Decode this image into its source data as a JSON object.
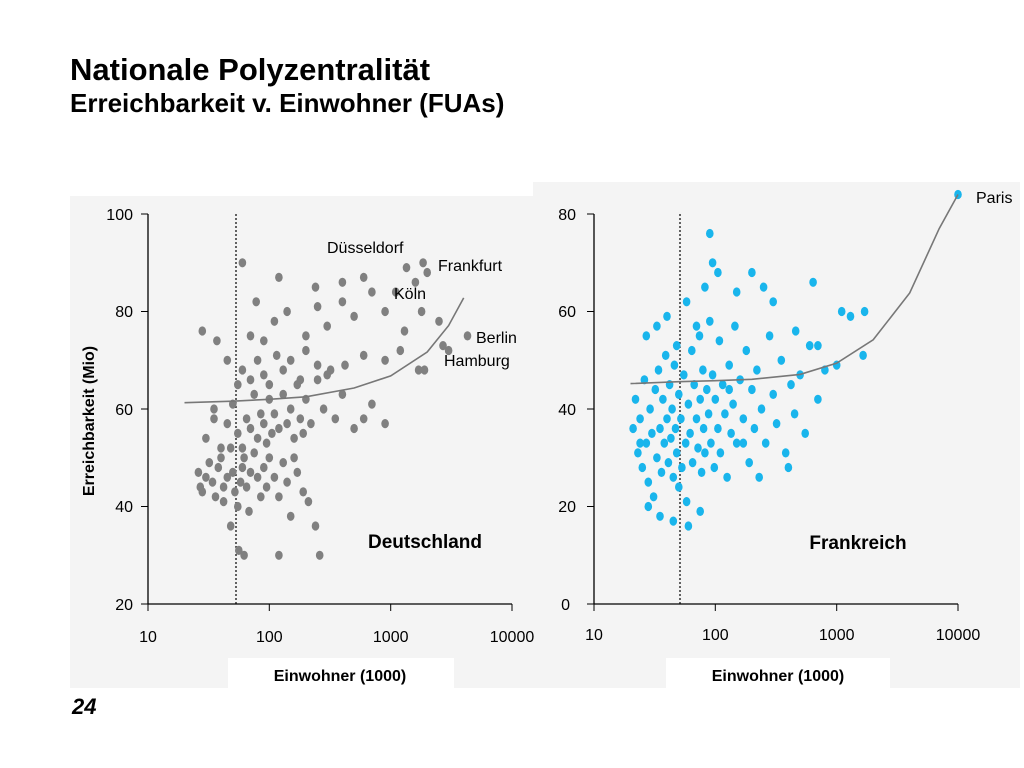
{
  "slide": {
    "title": "Nationale Polyzentralität",
    "subtitle": "Erreichbarkeit v. Einwohner (FUAs)",
    "page_number": "24"
  },
  "chart_data": [
    {
      "type": "scatter",
      "panel_label": "Deutschland",
      "xlabel": "Einwohner (1000)",
      "ylabel": "Erreichbarkeit (Mio)",
      "x_scale": "log",
      "xlim": [
        10,
        10000
      ],
      "ylim": [
        20,
        100
      ],
      "x_ticks": [
        "10",
        "100",
        "1000",
        "10000"
      ],
      "y_ticks": [
        "20",
        "40",
        "60",
        "80",
        "100"
      ],
      "reference_line_x": 50,
      "color": "#808080",
      "points": [
        [
          26,
          47
        ],
        [
          27,
          44
        ],
        [
          28,
          43
        ],
        [
          30,
          46
        ],
        [
          32,
          49
        ],
        [
          34,
          45
        ],
        [
          36,
          42
        ],
        [
          38,
          48
        ],
        [
          40,
          50
        ],
        [
          42,
          44
        ],
        [
          45,
          46
        ],
        [
          48,
          52
        ],
        [
          50,
          47
        ],
        [
          52,
          43
        ],
        [
          55,
          40
        ],
        [
          58,
          45
        ],
        [
          60,
          48
        ],
        [
          62,
          50
        ],
        [
          65,
          44
        ],
        [
          68,
          39
        ],
        [
          70,
          47
        ],
        [
          75,
          51
        ],
        [
          80,
          46
        ],
        [
          85,
          42
        ],
        [
          90,
          48
        ],
        [
          95,
          44
        ],
        [
          100,
          50
        ],
        [
          110,
          46
        ],
        [
          120,
          42
        ],
        [
          130,
          49
        ],
        [
          140,
          45
        ],
        [
          150,
          38
        ],
        [
          170,
          47
        ],
        [
          190,
          43
        ],
        [
          210,
          41
        ],
        [
          240,
          36
        ],
        [
          30,
          54
        ],
        [
          35,
          58
        ],
        [
          40,
          52
        ],
        [
          45,
          57
        ],
        [
          50,
          61
        ],
        [
          55,
          55
        ],
        [
          60,
          52
        ],
        [
          65,
          58
        ],
        [
          70,
          56
        ],
        [
          75,
          63
        ],
        [
          80,
          54
        ],
        [
          85,
          59
        ],
        [
          90,
          57
        ],
        [
          95,
          53
        ],
        [
          100,
          62
        ],
        [
          105,
          55
        ],
        [
          110,
          59
        ],
        [
          120,
          56
        ],
        [
          130,
          63
        ],
        [
          140,
          57
        ],
        [
          150,
          60
        ],
        [
          160,
          54
        ],
        [
          170,
          65
        ],
        [
          180,
          58
        ],
        [
          190,
          55
        ],
        [
          200,
          62
        ],
        [
          220,
          57
        ],
        [
          250,
          66
        ],
        [
          280,
          60
        ],
        [
          300,
          67
        ],
        [
          350,
          58
        ],
        [
          400,
          63
        ],
        [
          500,
          56
        ],
        [
          600,
          58
        ],
        [
          700,
          61
        ],
        [
          900,
          57
        ],
        [
          55,
          65
        ],
        [
          60,
          68
        ],
        [
          70,
          66
        ],
        [
          80,
          70
        ],
        [
          90,
          67
        ],
        [
          100,
          65
        ],
        [
          115,
          71
        ],
        [
          130,
          68
        ],
        [
          150,
          70
        ],
        [
          180,
          66
        ],
        [
          200,
          72
        ],
        [
          250,
          69
        ],
        [
          320,
          68
        ],
        [
          420,
          69
        ],
        [
          600,
          71
        ],
        [
          900,
          70
        ],
        [
          1200,
          72
        ],
        [
          1700,
          68
        ],
        [
          28,
          76
        ],
        [
          37,
          74
        ],
        [
          45,
          70
        ],
        [
          70,
          75
        ],
        [
          78,
          82
        ],
        [
          90,
          74
        ],
        [
          110,
          78
        ],
        [
          140,
          80
        ],
        [
          200,
          75
        ],
        [
          250,
          81
        ],
        [
          300,
          77
        ],
        [
          400,
          82
        ],
        [
          500,
          79
        ],
        [
          700,
          84
        ],
        [
          900,
          80
        ],
        [
          1300,
          76
        ],
        [
          1600,
          86
        ],
        [
          1800,
          80
        ],
        [
          2000,
          88
        ],
        [
          2500,
          78
        ],
        [
          60,
          90
        ],
        [
          120,
          87
        ],
        [
          240,
          85
        ],
        [
          400,
          86
        ],
        [
          600,
          87
        ],
        [
          1100,
          84
        ],
        [
          1350,
          89
        ],
        [
          1850,
          90
        ],
        [
          4300,
          75
        ],
        [
          2700,
          73
        ],
        [
          56,
          31
        ],
        [
          62,
          30
        ],
        [
          48,
          36
        ],
        [
          42,
          41
        ],
        [
          120,
          30
        ],
        [
          260,
          30
        ],
        [
          1900,
          68
        ],
        [
          3000,
          72
        ],
        [
          35,
          60
        ],
        [
          160,
          50
        ]
      ],
      "trend_curve": [
        [
          20,
          61.3
        ],
        [
          50,
          61.6
        ],
        [
          100,
          62
        ],
        [
          200,
          62.5
        ],
        [
          500,
          64.3
        ],
        [
          1000,
          66.8
        ],
        [
          2000,
          71.7
        ],
        [
          3000,
          77.1
        ],
        [
          4000,
          82.8
        ]
      ],
      "city_labels": [
        "Düsseldorf",
        "Frankfurt",
        "Köln",
        "Berlin",
        "Hamburg"
      ]
    },
    {
      "type": "scatter",
      "panel_label": "Frankreich",
      "xlabel": "Einwohner (1000)",
      "ylabel": "",
      "x_scale": "log",
      "xlim": [
        10,
        10000
      ],
      "ylim": [
        0,
        80
      ],
      "x_ticks": [
        "10",
        "100",
        "1000",
        "10000"
      ],
      "y_ticks": [
        "0",
        "20",
        "40",
        "60",
        "80"
      ],
      "reference_line_x": 50,
      "color": "#19b5ec",
      "points": [
        [
          21,
          36
        ],
        [
          22,
          42
        ],
        [
          23,
          31
        ],
        [
          24,
          38
        ],
        [
          25,
          28
        ],
        [
          26,
          46
        ],
        [
          27,
          33
        ],
        [
          28,
          25
        ],
        [
          29,
          40
        ],
        [
          30,
          35
        ],
        [
          31,
          22
        ],
        [
          32,
          44
        ],
        [
          33,
          30
        ],
        [
          34,
          48
        ],
        [
          35,
          36
        ],
        [
          36,
          27
        ],
        [
          37,
          42
        ],
        [
          38,
          33
        ],
        [
          39,
          51
        ],
        [
          40,
          38
        ],
        [
          41,
          29
        ],
        [
          42,
          45
        ],
        [
          43,
          34
        ],
        [
          44,
          40
        ],
        [
          45,
          26
        ],
        [
          46,
          49
        ],
        [
          47,
          36
        ],
        [
          48,
          31
        ],
        [
          50,
          43
        ],
        [
          52,
          38
        ],
        [
          53,
          28
        ],
        [
          55,
          47
        ],
        [
          57,
          33
        ],
        [
          58,
          21
        ],
        [
          60,
          41
        ],
        [
          62,
          35
        ],
        [
          64,
          52
        ],
        [
          65,
          29
        ],
        [
          67,
          45
        ],
        [
          70,
          38
        ],
        [
          72,
          32
        ],
        [
          74,
          55
        ],
        [
          75,
          42
        ],
        [
          77,
          27
        ],
        [
          79,
          48
        ],
        [
          80,
          36
        ],
        [
          82,
          31
        ],
        [
          85,
          44
        ],
        [
          88,
          39
        ],
        [
          90,
          58
        ],
        [
          92,
          33
        ],
        [
          95,
          47
        ],
        [
          98,
          28
        ],
        [
          100,
          42
        ],
        [
          105,
          36
        ],
        [
          108,
          54
        ],
        [
          110,
          31
        ],
        [
          115,
          45
        ],
        [
          120,
          39
        ],
        [
          125,
          26
        ],
        [
          130,
          49
        ],
        [
          135,
          35
        ],
        [
          140,
          41
        ],
        [
          145,
          57
        ],
        [
          150,
          33
        ],
        [
          160,
          46
        ],
        [
          170,
          38
        ],
        [
          180,
          52
        ],
        [
          190,
          29
        ],
        [
          200,
          44
        ],
        [
          210,
          36
        ],
        [
          220,
          48
        ],
        [
          240,
          40
        ],
        [
          260,
          33
        ],
        [
          280,
          55
        ],
        [
          300,
          43
        ],
        [
          320,
          37
        ],
        [
          350,
          50
        ],
        [
          380,
          31
        ],
        [
          420,
          45
        ],
        [
          450,
          39
        ],
        [
          500,
          47
        ],
        [
          550,
          35
        ],
        [
          600,
          53
        ],
        [
          700,
          42
        ],
        [
          800,
          48
        ],
        [
          1000,
          49
        ],
        [
          1100,
          60
        ],
        [
          1300,
          59
        ],
        [
          1700,
          60
        ],
        [
          27,
          55
        ],
        [
          33,
          57
        ],
        [
          40,
          59
        ],
        [
          48,
          53
        ],
        [
          58,
          62
        ],
        [
          70,
          57
        ],
        [
          82,
          65
        ],
        [
          95,
          70
        ],
        [
          105,
          68
        ],
        [
          150,
          64
        ],
        [
          200,
          68
        ],
        [
          250,
          65
        ],
        [
          300,
          62
        ],
        [
          460,
          56
        ],
        [
          640,
          66
        ],
        [
          90,
          76
        ],
        [
          1650,
          51
        ],
        [
          10000,
          84
        ],
        [
          35,
          18
        ],
        [
          60,
          16
        ],
        [
          28,
          20
        ],
        [
          45,
          17
        ],
        [
          75,
          19
        ],
        [
          24,
          33
        ],
        [
          50,
          24
        ],
        [
          130,
          44
        ],
        [
          170,
          33
        ],
        [
          400,
          28
        ],
        [
          230,
          26
        ],
        [
          700,
          53
        ]
      ],
      "trend_curve": [
        [
          20,
          45.2
        ],
        [
          50,
          45.6
        ],
        [
          100,
          45.8
        ],
        [
          200,
          46.1
        ],
        [
          500,
          47.1
        ],
        [
          1000,
          49.4
        ],
        [
          2000,
          54.2
        ],
        [
          4000,
          63.8
        ],
        [
          7000,
          77
        ],
        [
          10000,
          84
        ]
      ],
      "city_labels": [
        "Paris"
      ]
    }
  ]
}
